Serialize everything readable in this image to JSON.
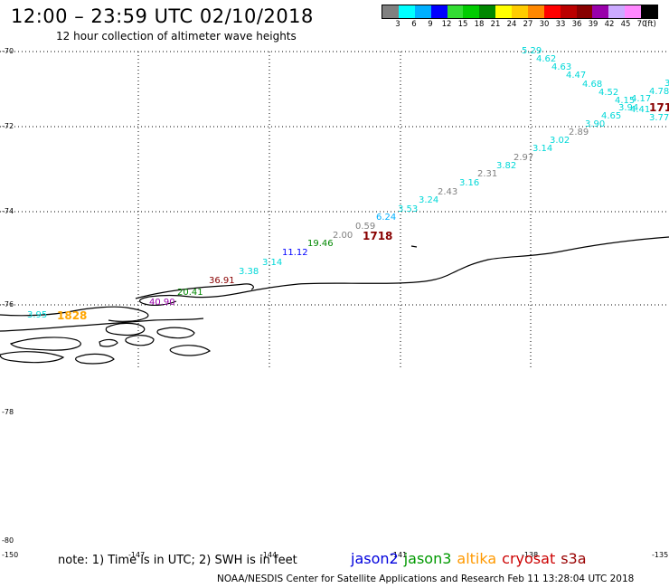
{
  "header": {
    "title": "12:00 – 23:59 UTC 02/10/2018",
    "subtitle": "12 hour collection of altimeter wave heights"
  },
  "legend": {
    "colors": [
      "#808080",
      "#00ffff",
      "#00b0ff",
      "#0000ff",
      "#33dd33",
      "#00cc00",
      "#008800",
      "#ffff00",
      "#ffcc00",
      "#ff8800",
      "#ff0000",
      "#bb0000",
      "#880000",
      "#9900aa",
      "#ccaaff",
      "#ff88ff",
      "#000000"
    ],
    "labels": [
      "3",
      "6",
      "9",
      "12",
      "15",
      "18",
      "21",
      "24",
      "27",
      "30",
      "33",
      "36",
      "39",
      "42",
      "45",
      "70"
    ],
    "unit": "(ft)"
  },
  "axes": {
    "lat_labels": [
      "-70",
      "-72",
      "-74",
      "-76",
      "-78",
      "-80"
    ],
    "lon_labels": [
      "-150",
      "-147",
      "-144",
      "-141",
      "-138",
      "-135"
    ]
  },
  "wave_heights": [
    {
      "v": "5.29",
      "c": "#00d8d8"
    },
    {
      "v": "4.62",
      "c": "#00d8d8"
    },
    {
      "v": "4.63",
      "c": "#00d8d8"
    },
    {
      "v": "4.47",
      "c": "#00d8d8"
    },
    {
      "v": "4.68",
      "c": "#00d8d8"
    },
    {
      "v": "4.52",
      "c": "#00d8d8"
    },
    {
      "v": "4.15",
      "c": "#00d8d8"
    },
    {
      "v": "4.17",
      "c": "#00d8d8"
    },
    {
      "v": "4.78",
      "c": "#00d8d8"
    },
    {
      "v": "3",
      "c": "#00d8d8"
    },
    {
      "v": "3.94",
      "c": "#00d8d8"
    },
    {
      "v": "4.41",
      "c": "#00d8d8"
    },
    {
      "v": "3.77",
      "c": "#00d8d8"
    },
    {
      "v": "4.65",
      "c": "#00d8d8"
    },
    {
      "v": "3.90",
      "c": "#00d8d8"
    },
    {
      "v": "2.89",
      "c": "#808080"
    },
    {
      "v": "3.02",
      "c": "#00d8d8"
    },
    {
      "v": "3.14",
      "c": "#00d8d8"
    },
    {
      "v": "2.97",
      "c": "#808080"
    },
    {
      "v": "3.82",
      "c": "#00d8d8"
    },
    {
      "v": "2.31",
      "c": "#808080"
    },
    {
      "v": "3.16",
      "c": "#00d8d8"
    },
    {
      "v": "2.43",
      "c": "#808080"
    },
    {
      "v": "3.24",
      "c": "#00d8d8"
    },
    {
      "v": "3.53",
      "c": "#00d8d8"
    },
    {
      "v": "6.24",
      "c": "#00b0ff"
    },
    {
      "v": "0.59",
      "c": "#808080"
    },
    {
      "v": "2.00",
      "c": "#808080"
    },
    {
      "v": "19.46",
      "c": "#008800"
    },
    {
      "v": "11.12",
      "c": "#0000ff"
    },
    {
      "v": "3.14",
      "c": "#00d8d8"
    },
    {
      "v": "3.38",
      "c": "#00d8d8"
    },
    {
      "v": "36.91",
      "c": "#880000"
    },
    {
      "v": "20.41",
      "c": "#008800"
    },
    {
      "v": "40.90",
      "c": "#9900aa"
    },
    {
      "v": "3.95",
      "c": "#00d8d8"
    }
  ],
  "pass_labels": [
    {
      "v": "1718",
      "c": "#880000"
    },
    {
      "v": "171",
      "c": "#880000"
    },
    {
      "v": "1828",
      "c": "#ffa500"
    }
  ],
  "footer": {
    "note": "note:  1) Time is in UTC;  2) SWH is in feet",
    "satellites": [
      {
        "name": "jason2",
        "color": "#0000dd"
      },
      {
        "name": "jason3",
        "color": "#009900"
      },
      {
        "name": "altika",
        "color": "#ff9900"
      },
      {
        "name": "cryosat",
        "color": "#cc0000"
      },
      {
        "name": "s3a",
        "color": "#990000"
      }
    ],
    "credit": "NOAA/NESDIS Center for Satellite Applications and Research    Feb 11 13:28:04 UTC 2018"
  }
}
